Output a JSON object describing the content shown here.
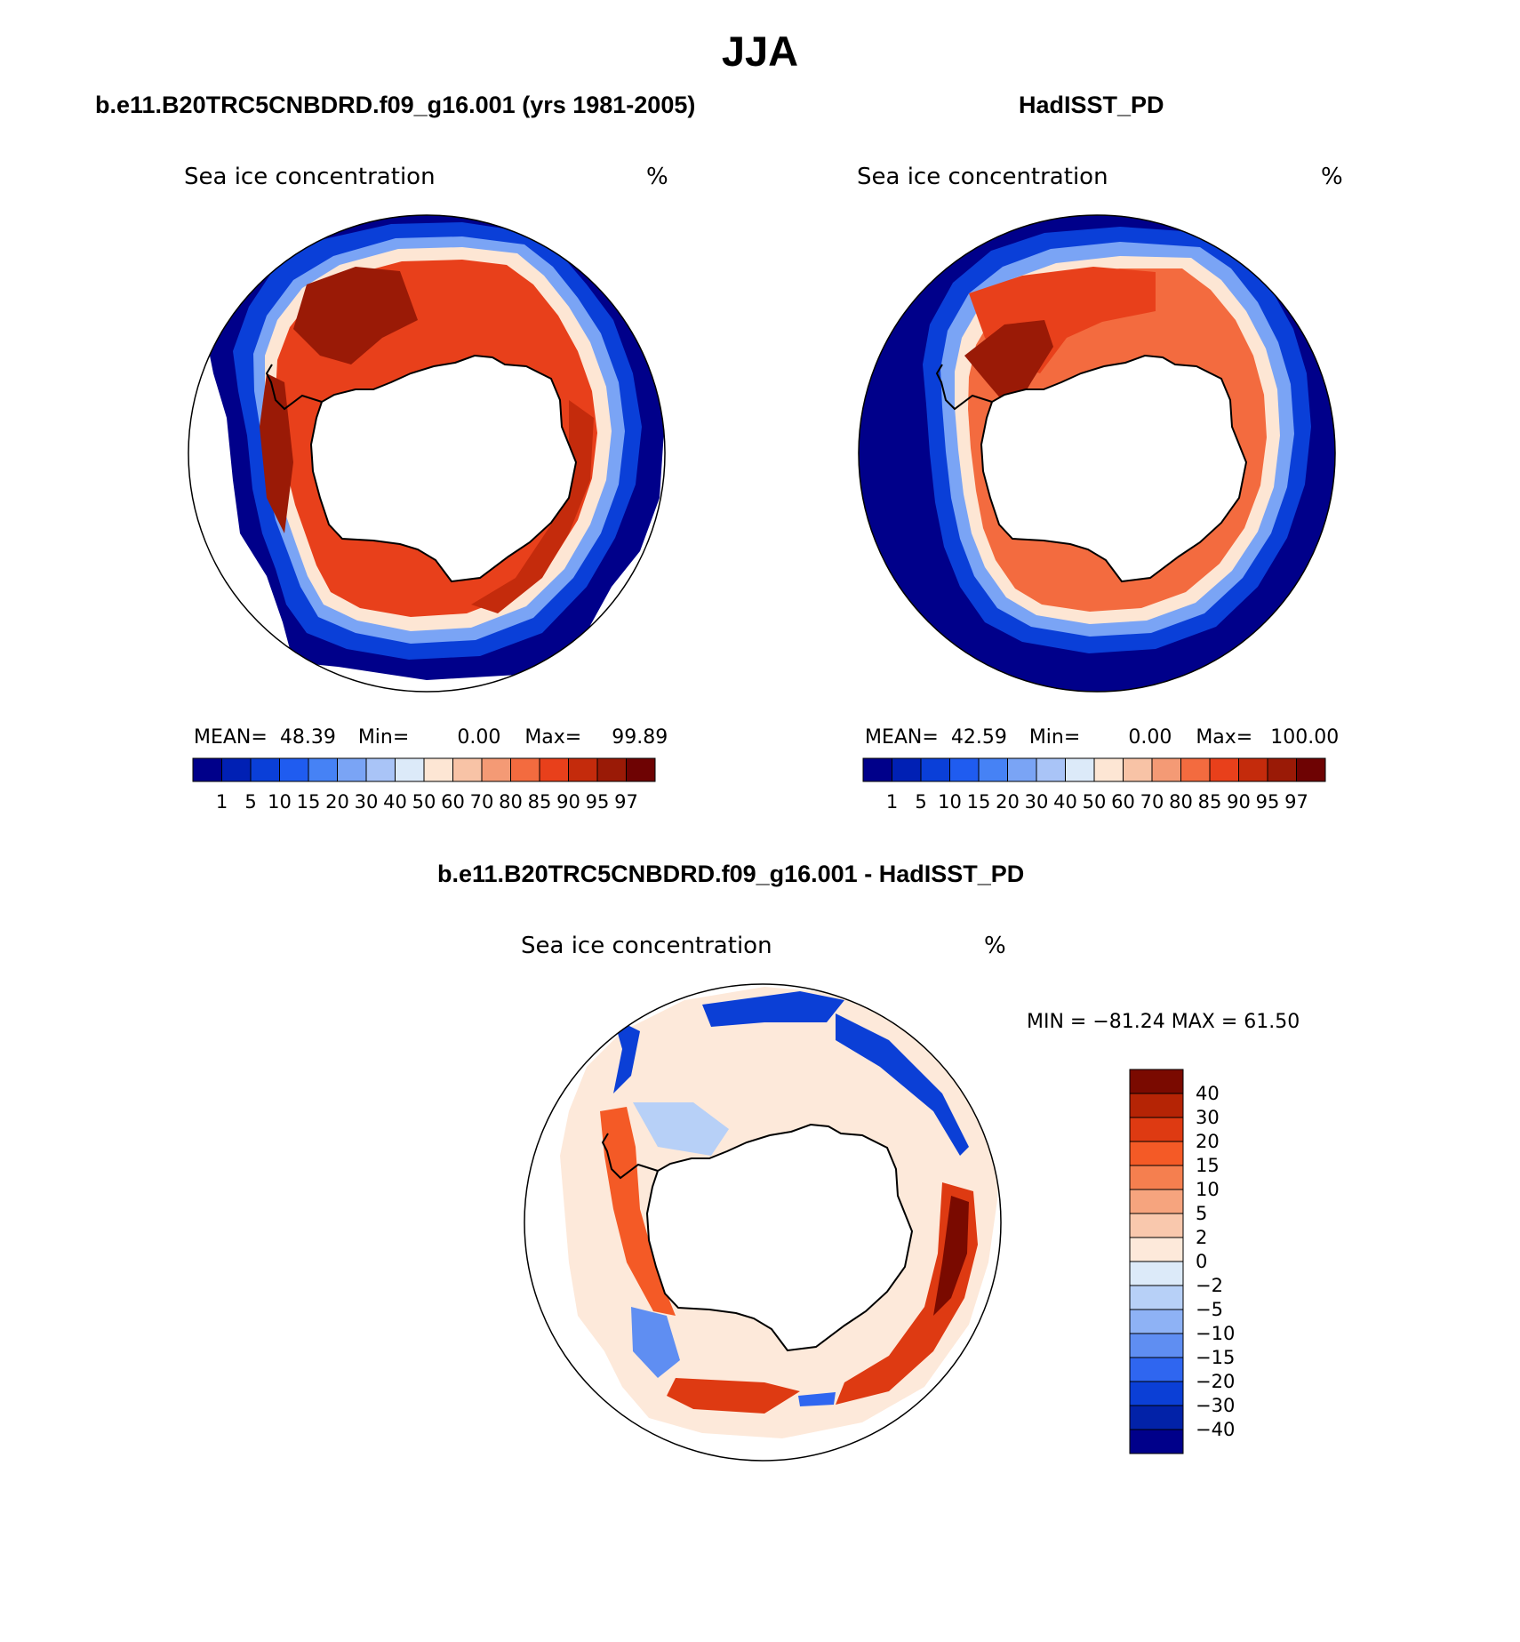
{
  "title": "JJA",
  "panels": [
    {
      "id": "model",
      "title": "b.e11.B20TRC5CNBDRD.f09_g16.001 (yrs 1981-2005)",
      "variable": "Sea ice concentration",
      "units": "%",
      "stats": {
        "mean_label": "MEAN=",
        "mean": "48.39",
        "min_label": "Min=",
        "min": "0.00",
        "max_label": "Max=",
        "max": "99.89"
      }
    },
    {
      "id": "obs",
      "title": "HadISST_PD",
      "variable": "Sea ice concentration",
      "units": "%",
      "stats": {
        "mean_label": "MEAN=",
        "mean": "42.59",
        "min_label": "Min=",
        "min": "0.00",
        "max_label": "Max=",
        "max": "100.00"
      }
    },
    {
      "id": "diff",
      "title": "b.e11.B20TRC5CNBDRD.f09_g16.001 - HadISST_PD",
      "variable": "Sea ice concentration",
      "units": "%",
      "minmax": "MIN = −81.24 MAX =   61.50"
    }
  ],
  "colorbars": {
    "concentration": {
      "levels": [
        "1",
        "5",
        "10",
        "15",
        "20",
        "30",
        "40",
        "50",
        "60",
        "70",
        "80",
        "85",
        "90",
        "95",
        "97"
      ],
      "colors": [
        "#00008a",
        "#0020b4",
        "#0a3fd8",
        "#1f5cf0",
        "#4682f5",
        "#7aa4f5",
        "#a9c4f7",
        "#dceaf9",
        "#fde6d4",
        "#f8c3a6",
        "#f49a75",
        "#f36b3f",
        "#e8401b",
        "#c42b0c",
        "#9a1a06",
        "#6e0303"
      ]
    },
    "difference": {
      "levels": [
        "40",
        "30",
        "20",
        "15",
        "10",
        "5",
        "2",
        "0",
        "−2",
        "−5",
        "−10",
        "−15",
        "−20",
        "−30",
        "−40"
      ],
      "colors": [
        "#7a0a00",
        "#b52405",
        "#de3a12",
        "#f45a26",
        "#f57f4f",
        "#f6a47e",
        "#f9c8ad",
        "#fde9da",
        "#dceaf9",
        "#b7d0f7",
        "#8eb2f5",
        "#5f8ef2",
        "#2f66f0",
        "#0b3fd6",
        "#0222a8",
        "#00008a"
      ]
    }
  }
}
